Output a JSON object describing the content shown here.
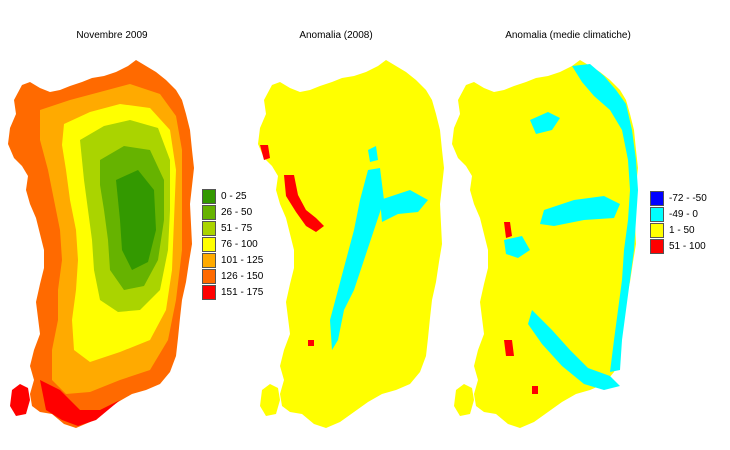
{
  "panels": [
    {
      "title": "Novembre 2009"
    },
    {
      "title": "Anomalia (2008)"
    },
    {
      "title": "Anomalia (medie climatiche)"
    }
  ],
  "legend_rain": [
    {
      "label": "0 - 25",
      "color": "#339900"
    },
    {
      "label": "26 - 50",
      "color": "#66b300"
    },
    {
      "label": "51 - 75",
      "color": "#aad400"
    },
    {
      "label": "76 - 100",
      "color": "#ffff00"
    },
    {
      "label": "101 - 125",
      "color": "#ffaa00"
    },
    {
      "label": "126 - 150",
      "color": "#ff6a00"
    },
    {
      "label": "151 - 175",
      "color": "#ff0000"
    }
  ],
  "legend_anomaly": [
    {
      "label": "-72 - -50",
      "color": "#0000ff"
    },
    {
      "label": "-49 - 0",
      "color": "#00ffff"
    },
    {
      "label": "1 - 50",
      "color": "#ffff00"
    },
    {
      "label": "51 - 100",
      "color": "#ff0000"
    }
  ]
}
